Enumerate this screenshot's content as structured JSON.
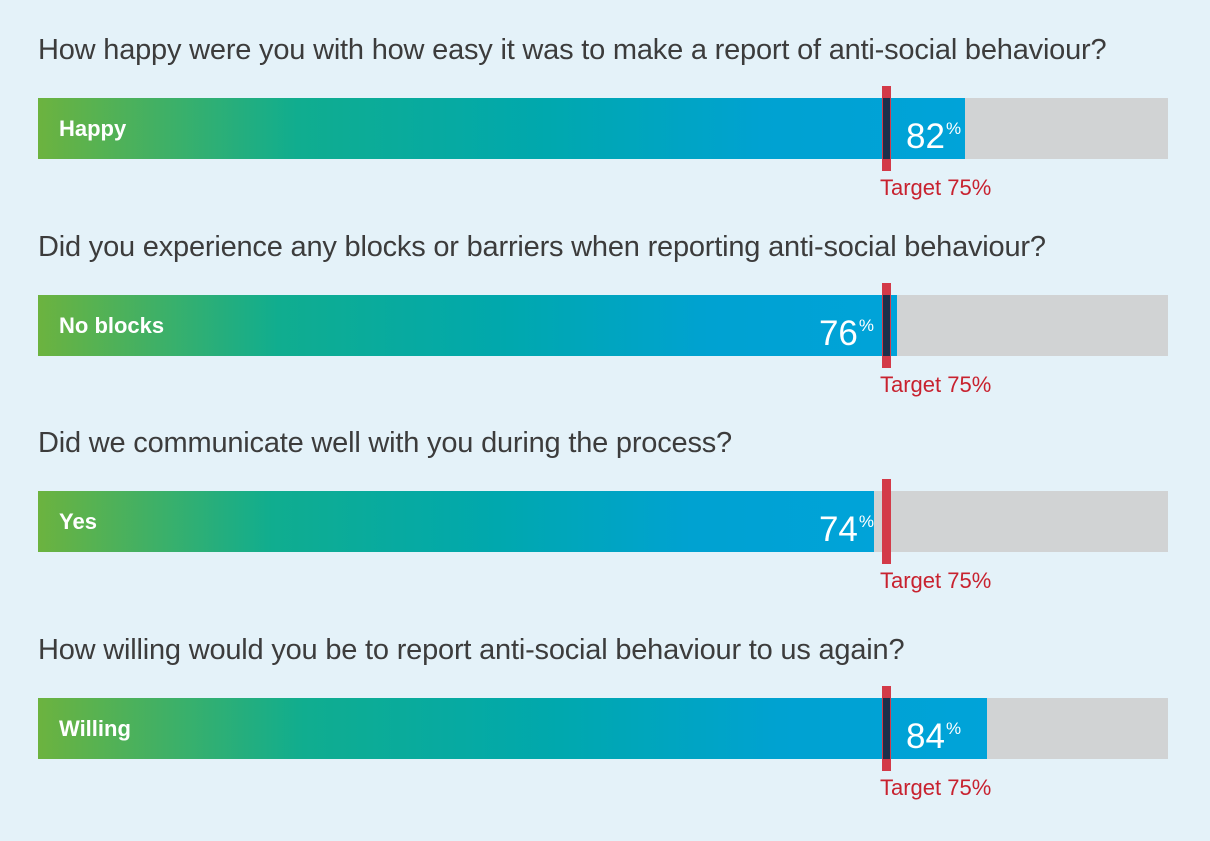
{
  "chart_data": {
    "type": "bar",
    "orientation": "horizontal",
    "xlim": [
      0,
      100
    ],
    "target": {
      "value": 75,
      "label": "Target 75%"
    },
    "value_suffix": "%",
    "bars": [
      {
        "question": "How happy were you with how easy it was to make a report of anti-social behaviour?",
        "category": "Happy",
        "value": 82,
        "value_text": "82"
      },
      {
        "question": "Did you experience any blocks or barriers when reporting anti-social behaviour?",
        "category": "No blocks",
        "value": 76,
        "value_text": "76"
      },
      {
        "question": "Did we communicate well with you during the process?",
        "category": "Yes",
        "value": 74,
        "value_text": "74"
      },
      {
        "question": "How willing would you be to report anti-social behaviour to us again?",
        "category": "Willing",
        "value": 84,
        "value_text": "84"
      }
    ]
  },
  "colors": {
    "background": "#e4f2f9",
    "track": "#d1d3d4",
    "gradient_start": "#6cb33f",
    "gradient_end": "#00a3d9",
    "target_marker": "#d33a48",
    "target_text": "#c8222f"
  }
}
